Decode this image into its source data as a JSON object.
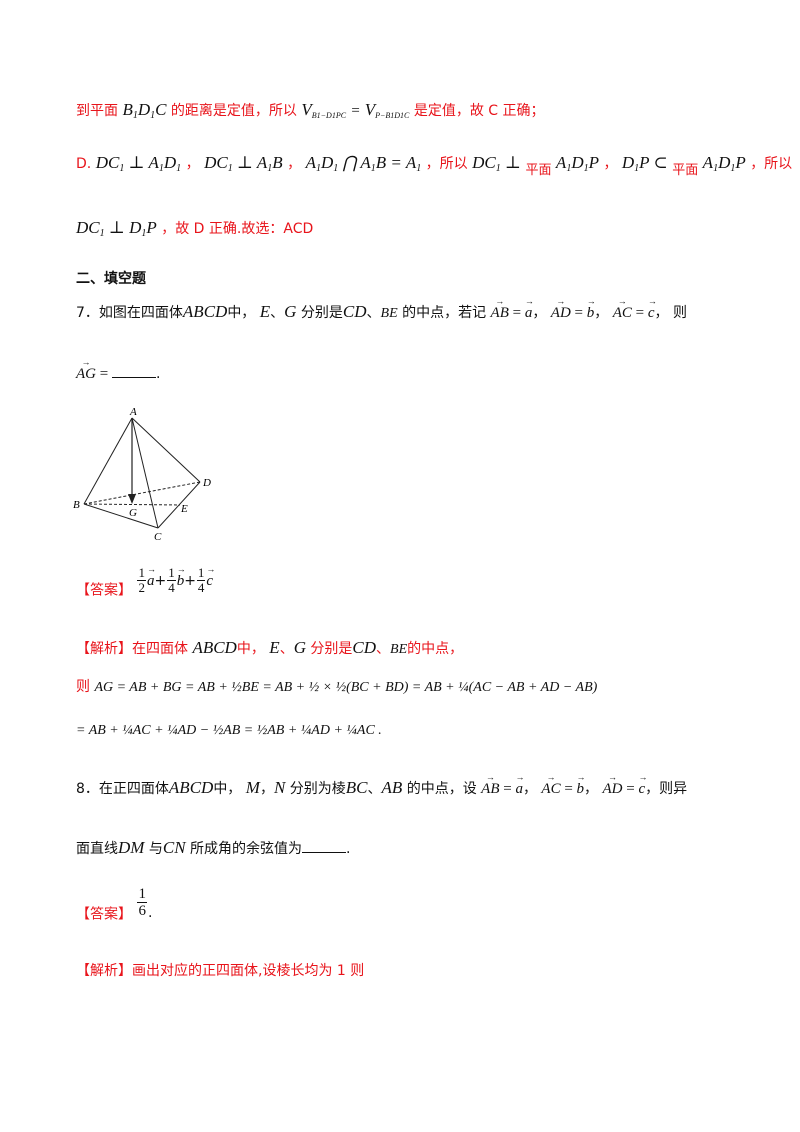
{
  "s1": {
    "t1": "到平面",
    "m1": "B",
    "m1b": "D",
    "m1c": "C",
    "t2": "的距离是定值，所以",
    "vlabel": "V",
    "vsub1": "B",
    "vsub1b": "−D",
    "vsub1c": "PC",
    "vsub2": "P−B",
    "vsub2b": "D",
    "vsub2c": "C",
    "eq": "=",
    "t3": "是定值，故 C 正确；"
  },
  "s2": {
    "lead": "D.",
    "f1": "DC",
    "f1b": "⊥ A",
    "f1c": "D",
    "sep": "，",
    "f2": "DC",
    "f2b": "⊥ A",
    "f2c": "B",
    "f3": "A",
    "f3b": "D",
    "f3c": "⋂ A",
    "f3d": "B = A",
    "t1": "，所以",
    "f4": "DC",
    "f4b": "⊥",
    "plane": "平面",
    "f5": "A",
    "f5b": "D",
    "f5c": "P",
    "f6": "D",
    "f6b": "P ⊂",
    "t2": "，所以"
  },
  "s3": {
    "f1": "DC",
    "f1b": "⊥ D",
    "f1c": "P",
    "t": "，故 D 正确.故选：ACD"
  },
  "section": "二、填空题",
  "q7": {
    "num": "7．如图在四面体",
    "abcd": "ABCD",
    "t1": "中，",
    "e": "E",
    "dun": "、",
    "g": "G",
    "t2": "分别是",
    "cd": "CD",
    "be": "BE",
    "t3": "的中点，若记",
    "ab": "AB",
    "a": "a",
    "ad": "AD",
    "b": "b",
    "ac": "AC",
    "c": "c",
    "ze": "则",
    "ag": "AG",
    "eq": "=",
    "end": "."
  },
  "figure": {
    "A": "A",
    "B": "B",
    "C": "C",
    "D": "D",
    "E": "E",
    "G": "G"
  },
  "ans7": {
    "tag": "【答案】",
    "n1": "1",
    "d1": "2",
    "n2": "1",
    "d2": "4",
    "n3": "1",
    "d3": "4",
    "a": "a",
    "b": "b",
    "c": "c",
    "plus": "+"
  },
  "jx7": {
    "tag": "【解析】",
    "t1": "在四面体",
    "abcd": "ABCD",
    "t2": "中，",
    "e": "E",
    "g": "G",
    "t3": "分别是",
    "cd": "CD",
    "be": "BE",
    "t4": "的中点，",
    "ze": "则",
    "line2": "AG = AB + BG = AB + ½BE = AB + ½ × ½(BC + BD) = AB + ¼(AC − AB + AD − AB)",
    "line3": "= AB + ¼AC + ¼AD − ½AB = ½AB + ¼AD + ¼AC ."
  },
  "q8": {
    "num": "8．在正四面体",
    "abcd": "ABCD",
    "t1": "中，",
    "m": "M",
    "n": "N",
    "t2": "分别为棱",
    "bc": "BC",
    "ab": "AB",
    "t3": "的中点，设",
    "vab": "AB",
    "a": "a",
    "vac": "AC",
    "b": "b",
    "vad": "AD",
    "c": "c",
    "t4": "，则异",
    "t5": "面直线",
    "dm": "DM",
    "yu": "与",
    "cn": "CN",
    "t6": "所成角的余弦值为",
    "end": "."
  },
  "ans8": {
    "tag": "【答案】",
    "n": "1",
    "d": "6",
    "end": "."
  },
  "jx8": {
    "tag": "【解析】",
    "t": "画出对应的正四面体,设棱长均为 1 则"
  }
}
